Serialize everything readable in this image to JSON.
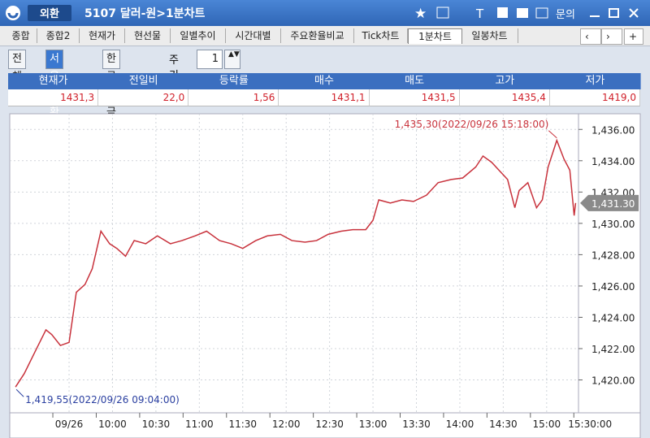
{
  "titlebar": {
    "badge": "외환",
    "title": "5107 달러-원>1분차트",
    "menu": "문의"
  },
  "tabs": [
    "종합",
    "종합2",
    "현재가",
    "현선물",
    "일별추이",
    "시간대별",
    "주요환율비교",
    "Tick차트",
    "1분차트",
    "일봉차트"
  ],
  "selected_tab": 8,
  "market_buttons": [
    "전체",
    "서울외환",
    "한국자금"
  ],
  "selected_market": 1,
  "period": {
    "label": "주기",
    "value": "1"
  },
  "quote_table": {
    "headers": [
      "현재가",
      "전일비",
      "등락률",
      "매수",
      "매도",
      "고가",
      "저가"
    ],
    "values": [
      "1431,3",
      "22,0",
      "1,56",
      "1431,1",
      "1431,5",
      "1435,4",
      "1419,0"
    ]
  },
  "chart_data": {
    "type": "line",
    "x": [
      "08:53",
      "08:59",
      "09:07",
      "09:14",
      "09:18",
      "09:24",
      "09:30",
      "09:35",
      "09:41",
      "09:46",
      "09:52",
      "09:58",
      "10:03",
      "10:09",
      "10:15",
      "10:23",
      "10:31",
      "10:40",
      "10:48",
      "10:57",
      "11:05",
      "11:14",
      "11:22",
      "11:30",
      "11:39",
      "11:47",
      "11:56",
      "12:04",
      "12:13",
      "12:21",
      "12:29",
      "12:38",
      "12:46",
      "12:55",
      "13:00",
      "13:04",
      "13:12",
      "13:20",
      "13:28",
      "13:37",
      "13:45",
      "13:54",
      "14:02",
      "14:11",
      "14:16",
      "14:22",
      "14:27",
      "14:33",
      "14:38",
      "14:41",
      "14:47",
      "14:53",
      "14:57",
      "15:01",
      "15:07",
      "15:12",
      "15:16",
      "15:19",
      "15:20"
    ],
    "series": [
      {
        "color": "#c8323c",
        "values": [
          1419.55,
          1420.4,
          1421.9,
          1423.2,
          1422.9,
          1422.2,
          1422.4,
          1425.6,
          1426.1,
          1427.1,
          1429.5,
          1428.7,
          1428.4,
          1427.9,
          1428.9,
          1428.7,
          1429.2,
          1428.7,
          1428.9,
          1429.2,
          1429.5,
          1428.9,
          1428.7,
          1428.4,
          1428.9,
          1429.2,
          1429.3,
          1428.9,
          1428.8,
          1428.9,
          1429.3,
          1429.5,
          1429.6,
          1429.6,
          1430.2,
          1431.5,
          1431.3,
          1431.5,
          1431.4,
          1431.8,
          1432.6,
          1432.8,
          1432.9,
          1433.6,
          1434.3,
          1433.9,
          1433.4,
          1432.8,
          1431.0,
          1432.1,
          1432.6,
          1431.0,
          1431.5,
          1433.6,
          1435.3,
          1434.1,
          1433.4,
          1430.5,
          1431.3
        ]
      }
    ],
    "ylim": [
      1417.9,
      1437.0
    ],
    "yticks": [
      {
        "value": 1420,
        "label": "1,420.00"
      },
      {
        "value": 1422,
        "label": "1,422.00"
      },
      {
        "value": 1424,
        "label": "1,424.00"
      },
      {
        "value": 1426,
        "label": "1,426.00"
      },
      {
        "value": 1428,
        "label": "1,428.00"
      },
      {
        "value": 1430,
        "label": "1,430.00"
      },
      {
        "value": 1432,
        "label": "1,432.00"
      },
      {
        "value": 1434,
        "label": "1,434.00"
      },
      {
        "value": 1436,
        "label": "1,436.00"
      }
    ],
    "xlim": [
      "08:49",
      "15:22"
    ],
    "xticks": [
      {
        "value": "09:30",
        "label": "09/26"
      },
      "10:00",
      "10:30",
      "11:00",
      "11:30",
      "12:00",
      "12:30",
      "13:00",
      "13:30",
      "14:00",
      "14:30",
      "15:00",
      {
        "value": "15:30",
        "label": "15:30:00"
      }
    ],
    "last_price": {
      "value": 1431.3,
      "label": "1,431.30"
    },
    "annotations": {
      "high": "1,435,30(2022/09/26 15:18:00)",
      "low": "1,419,55(2022/09/26 09:04:00)"
    },
    "grid": true
  }
}
